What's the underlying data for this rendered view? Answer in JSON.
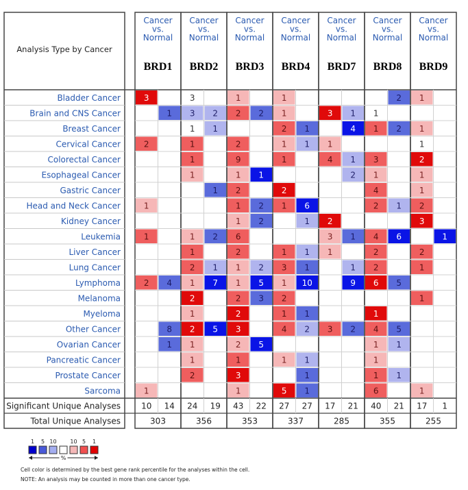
{
  "chart_data": {
    "type": "heatmap",
    "corner_label": "Analysis Type by Cancer",
    "column_header_lines": [
      "Cancer",
      "vs.",
      "Normal"
    ],
    "genes": [
      "BRD1",
      "BRD2",
      "BRD3",
      "BRD4",
      "BRD7",
      "BRD8",
      "BRD9"
    ],
    "cancers": [
      "Bladder Cancer",
      "Brain and CNS Cancer",
      "Breast Cancer",
      "Cervical Cancer",
      "Colorectal Cancer",
      "Esophageal Cancer",
      "Gastric Cancer",
      "Head and Neck Cancer",
      "Kidney Cancer",
      "Leukemia",
      "Liver Cancer",
      "Lung Cancer",
      "Lymphoma",
      "Melanoma",
      "Myeloma",
      "Other Cancer",
      "Ovarian Cancer",
      "Pancreatic Cancer",
      "Prostate Cancer",
      "Sarcoma"
    ],
    "cell_scale_note": "up = red (over-expression), down = blue (under-expression); value = number of analyses; color depth = best gene rank percentile (1, 5, 10 %)",
    "cells": [
      [
        {
          "up": "3",
          "down": ""
        },
        {
          "up": "3",
          "down": ""
        },
        {
          "up": "1",
          "down": ""
        },
        {
          "up": "1",
          "down": ""
        },
        {
          "up": "",
          "down": ""
        },
        {
          "up": "",
          "down": "2"
        },
        {
          "up": "1",
          "down": ""
        }
      ],
      [
        {
          "up": "",
          "down": "1"
        },
        {
          "up": "3",
          "down": "2"
        },
        {
          "up": "2",
          "down": "2"
        },
        {
          "up": "1",
          "down": ""
        },
        {
          "up": "3",
          "down": "1"
        },
        {
          "up": "1",
          "down": ""
        },
        {
          "up": "",
          "down": ""
        }
      ],
      [
        {
          "up": "",
          "down": ""
        },
        {
          "up": "1",
          "down": "1"
        },
        {
          "up": "",
          "down": ""
        },
        {
          "up": "2",
          "down": "1"
        },
        {
          "up": "",
          "down": "4"
        },
        {
          "up": "1",
          "down": "2"
        },
        {
          "up": "1",
          "down": ""
        }
      ],
      [
        {
          "up": "2",
          "down": ""
        },
        {
          "up": "1",
          "down": ""
        },
        {
          "up": "2",
          "down": ""
        },
        {
          "up": "1",
          "down": "1"
        },
        {
          "up": "1",
          "down": ""
        },
        {
          "up": "",
          "down": ""
        },
        {
          "up": "1",
          "down": ""
        }
      ],
      [
        {
          "up": "",
          "down": ""
        },
        {
          "up": "1",
          "down": ""
        },
        {
          "up": "9",
          "down": ""
        },
        {
          "up": "1",
          "down": ""
        },
        {
          "up": "4",
          "down": "1"
        },
        {
          "up": "3",
          "down": ""
        },
        {
          "up": "2",
          "down": ""
        }
      ],
      [
        {
          "up": "",
          "down": ""
        },
        {
          "up": "1",
          "down": ""
        },
        {
          "up": "1",
          "down": "1"
        },
        {
          "up": "",
          "down": ""
        },
        {
          "up": "",
          "down": "2"
        },
        {
          "up": "1",
          "down": ""
        },
        {
          "up": "1",
          "down": ""
        }
      ],
      [
        {
          "up": "",
          "down": ""
        },
        {
          "up": "",
          "down": "1"
        },
        {
          "up": "2",
          "down": ""
        },
        {
          "up": "2",
          "down": ""
        },
        {
          "up": "",
          "down": ""
        },
        {
          "up": "4",
          "down": ""
        },
        {
          "up": "1",
          "down": ""
        }
      ],
      [
        {
          "up": "1",
          "down": ""
        },
        {
          "up": "",
          "down": ""
        },
        {
          "up": "1",
          "down": "2"
        },
        {
          "up": "1",
          "down": "6"
        },
        {
          "up": "",
          "down": ""
        },
        {
          "up": "2",
          "down": "1"
        },
        {
          "up": "2",
          "down": ""
        }
      ],
      [
        {
          "up": "",
          "down": ""
        },
        {
          "up": "",
          "down": ""
        },
        {
          "up": "1",
          "down": "2"
        },
        {
          "up": "",
          "down": "1"
        },
        {
          "up": "2",
          "down": ""
        },
        {
          "up": "",
          "down": ""
        },
        {
          "up": "3",
          "down": ""
        }
      ],
      [
        {
          "up": "1",
          "down": ""
        },
        {
          "up": "1",
          "down": "2"
        },
        {
          "up": "6",
          "down": ""
        },
        {
          "up": "",
          "down": ""
        },
        {
          "up": "3",
          "down": "1"
        },
        {
          "up": "4",
          "down": "6"
        },
        {
          "up": "",
          "down": "1"
        }
      ],
      [
        {
          "up": "",
          "down": ""
        },
        {
          "up": "1",
          "down": ""
        },
        {
          "up": "2",
          "down": ""
        },
        {
          "up": "1",
          "down": "1"
        },
        {
          "up": "1",
          "down": ""
        },
        {
          "up": "2",
          "down": ""
        },
        {
          "up": "2",
          "down": ""
        }
      ],
      [
        {
          "up": "",
          "down": ""
        },
        {
          "up": "2",
          "down": "1"
        },
        {
          "up": "1",
          "down": "2"
        },
        {
          "up": "3",
          "down": "1"
        },
        {
          "up": "",
          "down": "1"
        },
        {
          "up": "2",
          "down": ""
        },
        {
          "up": "1",
          "down": ""
        }
      ],
      [
        {
          "up": "2",
          "down": "4"
        },
        {
          "up": "1",
          "down": "7"
        },
        {
          "up": "1",
          "down": "5"
        },
        {
          "up": "1",
          "down": "10"
        },
        {
          "up": "",
          "down": "9"
        },
        {
          "up": "6",
          "down": "5"
        },
        {
          "up": "",
          "down": ""
        }
      ],
      [
        {
          "up": "",
          "down": ""
        },
        {
          "up": "2",
          "down": ""
        },
        {
          "up": "2",
          "down": "3"
        },
        {
          "up": "2",
          "down": ""
        },
        {
          "up": "",
          "down": ""
        },
        {
          "up": "",
          "down": ""
        },
        {
          "up": "1",
          "down": ""
        }
      ],
      [
        {
          "up": "",
          "down": ""
        },
        {
          "up": "1",
          "down": ""
        },
        {
          "up": "2",
          "down": ""
        },
        {
          "up": "1",
          "down": "1"
        },
        {
          "up": "",
          "down": ""
        },
        {
          "up": "1",
          "down": ""
        },
        {
          "up": "",
          "down": ""
        }
      ],
      [
        {
          "up": "",
          "down": "8"
        },
        {
          "up": "2",
          "down": "5"
        },
        {
          "up": "3",
          "down": ""
        },
        {
          "up": "4",
          "down": "2"
        },
        {
          "up": "3",
          "down": "2"
        },
        {
          "up": "4",
          "down": "5"
        },
        {
          "up": "",
          "down": ""
        }
      ],
      [
        {
          "up": "",
          "down": "1"
        },
        {
          "up": "1",
          "down": ""
        },
        {
          "up": "2",
          "down": "5"
        },
        {
          "up": "",
          "down": ""
        },
        {
          "up": "",
          "down": ""
        },
        {
          "up": "1",
          "down": "1"
        },
        {
          "up": "",
          "down": ""
        }
      ],
      [
        {
          "up": "",
          "down": ""
        },
        {
          "up": "1",
          "down": ""
        },
        {
          "up": "1",
          "down": ""
        },
        {
          "up": "1",
          "down": "1"
        },
        {
          "up": "",
          "down": ""
        },
        {
          "up": "1",
          "down": ""
        },
        {
          "up": "",
          "down": ""
        }
      ],
      [
        {
          "up": "",
          "down": ""
        },
        {
          "up": "2",
          "down": ""
        },
        {
          "up": "3",
          "down": ""
        },
        {
          "up": "",
          "down": "1"
        },
        {
          "up": "",
          "down": ""
        },
        {
          "up": "1",
          "down": "1"
        },
        {
          "up": "",
          "down": ""
        }
      ],
      [
        {
          "up": "1",
          "down": ""
        },
        {
          "up": "",
          "down": ""
        },
        {
          "up": "1",
          "down": ""
        },
        {
          "up": "5",
          "down": "1"
        },
        {
          "up": "",
          "down": ""
        },
        {
          "up": "6",
          "down": ""
        },
        {
          "up": "1",
          "down": ""
        }
      ]
    ],
    "colors": [
      [
        "r3",
        "",
        "r1",
        "r1",
        "",
        "",
        "r1"
      ],
      [
        "",
        "b1",
        "r2",
        "r1",
        "r3",
        "",
        " "
      ],
      [
        "",
        "",
        "",
        "r2",
        "",
        "r2",
        "r1"
      ],
      [
        "r2",
        "r2",
        "r2",
        "r1",
        "r1",
        "",
        ""
      ],
      [
        "",
        "r2",
        "r2",
        "r2",
        "r2",
        "r2",
        "r3"
      ],
      [
        "",
        "r1",
        "r1",
        "",
        "",
        "r1",
        "r1"
      ],
      [
        "",
        "",
        "r2",
        "r3",
        "",
        "r2",
        "r1"
      ],
      [
        "r1",
        "",
        "r2",
        "r2",
        "",
        "r2",
        "r2"
      ],
      [
        "",
        "",
        "r1",
        "",
        "r3",
        "",
        "r3"
      ],
      [
        "r2",
        "r1",
        "r2",
        "",
        "r1",
        "r2",
        ""
      ],
      [
        "",
        "r2",
        "r2",
        "r2",
        "r1",
        "r2",
        "r2"
      ],
      [
        "",
        "r2",
        "r1",
        "r2",
        "",
        "r2",
        "r2"
      ],
      [
        "r2",
        "r1",
        "r1",
        "r1",
        "",
        "r3",
        ""
      ],
      [
        "",
        "r3",
        "r2",
        "r2",
        "",
        "",
        "r2"
      ],
      [
        "",
        "r1",
        "r3",
        "r2",
        "",
        "r3",
        ""
      ],
      [
        "",
        "r3",
        "r3",
        "r2",
        "r2",
        "r2",
        ""
      ],
      [
        "",
        "r1",
        "r1",
        "",
        "",
        "r1",
        ""
      ],
      [
        "",
        "r1",
        "r2",
        "r1",
        "",
        "r1",
        ""
      ],
      [
        "",
        "r2",
        "r3",
        "",
        "",
        "r2",
        ""
      ],
      [
        "r1",
        "",
        "r1",
        "r3",
        "",
        "r2",
        "r1"
      ]
    ],
    "down_colors": [
      [
        "",
        "",
        "",
        "",
        "",
        "b2",
        ""
      ],
      [
        "b2",
        "b1",
        "b2",
        "",
        "b1",
        "",
        ""
      ],
      [
        "",
        "b1",
        "",
        "b2",
        "b3",
        "b2",
        ""
      ],
      [
        "",
        "",
        "",
        "b1",
        "",
        "",
        ""
      ],
      [
        "",
        "",
        "",
        "",
        "b1",
        "",
        ""
      ],
      [
        "",
        "",
        "b3",
        "",
        "b1",
        "",
        ""
      ],
      [
        "",
        "b2",
        "",
        "",
        "",
        "",
        ""
      ],
      [
        "",
        "",
        "b2",
        "b3",
        "",
        "b1",
        ""
      ],
      [
        "",
        "",
        "b2",
        "b1",
        "",
        "",
        ""
      ],
      [
        "",
        "b2",
        "",
        "",
        "b2",
        "b3",
        "b3"
      ],
      [
        "",
        "",
        "",
        "b1",
        "",
        "",
        ""
      ],
      [
        "",
        "b1",
        "b1",
        "b2",
        "b1",
        "",
        ""
      ],
      [
        "b2",
        "b3",
        "b3",
        "b3",
        "b3",
        "b2",
        ""
      ],
      [
        "",
        "",
        "b2",
        "",
        "",
        "",
        ""
      ],
      [
        "",
        "",
        "",
        "b2",
        "",
        "",
        ""
      ],
      [
        "b2",
        "b3",
        "",
        "b1",
        "b2",
        "b2",
        ""
      ],
      [
        "b2",
        "",
        "b3",
        "",
        "",
        "b1",
        ""
      ],
      [
        "",
        "",
        "",
        "b1",
        "",
        "",
        ""
      ],
      [
        "",
        "",
        "",
        "b2",
        "",
        "b1",
        ""
      ],
      [
        "",
        "",
        "",
        "b2",
        "",
        "",
        ""
      ]
    ],
    "significant_label": "Significant Unique Analyses",
    "significant": [
      [
        "10",
        "14"
      ],
      [
        "24",
        "19"
      ],
      [
        "43",
        "22"
      ],
      [
        "27",
        "27"
      ],
      [
        "17",
        "21"
      ],
      [
        "40",
        "21"
      ],
      [
        "17",
        "1"
      ]
    ],
    "total_label": "Total Unique Analyses",
    "total": [
      "303",
      "356",
      "353",
      "337",
      "285",
      "355",
      "255"
    ],
    "legend": {
      "blue_ticks": [
        "1",
        "5",
        "10"
      ],
      "red_ticks": [
        "10",
        "5",
        "1"
      ],
      "unit": "%",
      "swatches": [
        "#0000cc",
        "#4a5ad8",
        "#a4aef0",
        "#ffffff",
        "#f4b8b8",
        "#f05050",
        "#e00000"
      ]
    },
    "note1": "Cell color is determined by the best gene rank percentile for the analyses within the cell.",
    "note2": "NOTE: An analysis may be counted in more than one cancer type."
  }
}
